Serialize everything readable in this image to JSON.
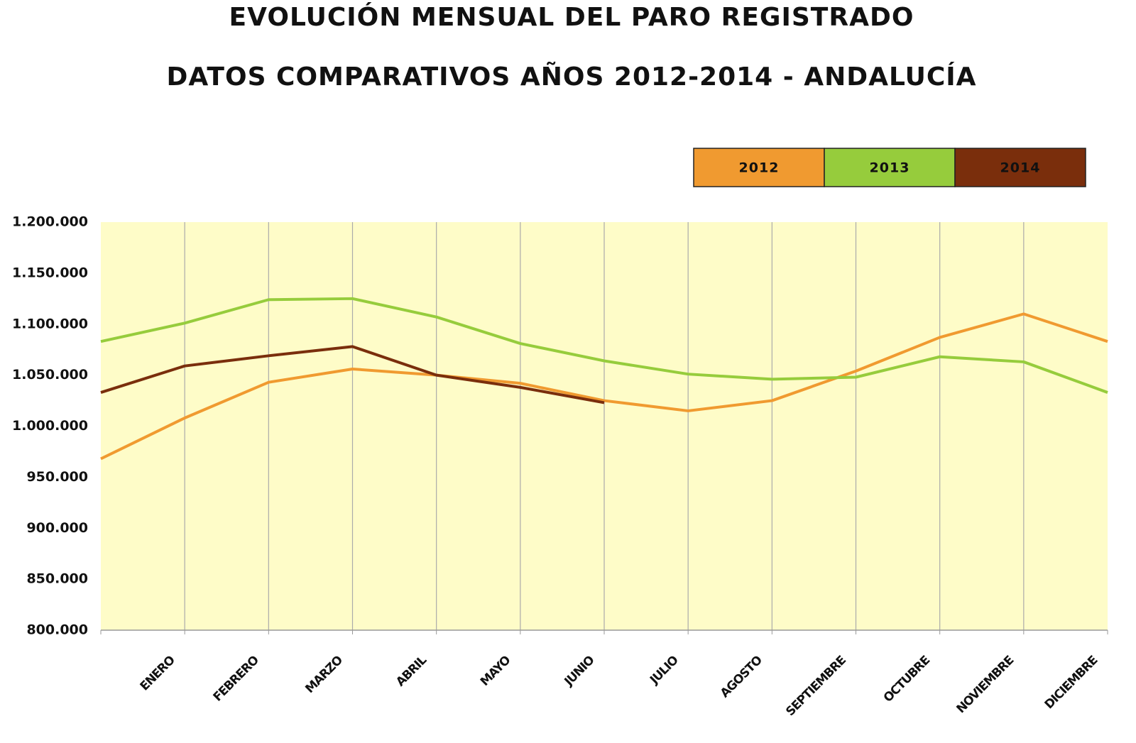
{
  "chart_data": {
    "type": "line",
    "title": "EVOLUCIÓN MENSUAL DEL PARO REGISTRADO",
    "subtitle": "DATOS COMPARATIVOS AÑOS 2012-2014 - ANDALUCÍA",
    "categories": [
      null,
      "ENERO",
      "FEBRERO",
      "MARZO",
      "ABRIL",
      "MAYO",
      "JUNIO",
      "JULIO",
      "AGOSTO",
      "SEPTIEMBRE",
      "OCTUBRE",
      "NOVIEMBRE",
      "DICIEMBRE"
    ],
    "series": [
      {
        "name": "2012",
        "color": "#f09a30",
        "values": [
          968000,
          1008000,
          1043000,
          1056000,
          1050000,
          1042000,
          1025000,
          1015000,
          1025000,
          1054000,
          1087000,
          1110000,
          1083000
        ]
      },
      {
        "name": "2013",
        "color": "#96cc3c",
        "values": [
          1083000,
          1101000,
          1124000,
          1125000,
          1107000,
          1081000,
          1064000,
          1051000,
          1046000,
          1048000,
          1068000,
          1063000,
          1033000
        ]
      },
      {
        "name": "2014",
        "color": "#7a2e0c",
        "values": [
          1033000,
          1059000,
          1069000,
          1078000,
          1050000,
          1038000,
          1023000,
          null,
          null,
          null,
          null,
          null,
          null
        ]
      }
    ],
    "ylim": [
      800000,
      1200000
    ],
    "yticks": [
      {
        "value": 800000,
        "label": "800.000"
      },
      {
        "value": 850000,
        "label": "850.000"
      },
      {
        "value": 900000,
        "label": "900.000"
      },
      {
        "value": 950000,
        "label": "950.000"
      },
      {
        "value": 1000000,
        "label": "1.000.000"
      },
      {
        "value": 1050000,
        "label": "1.050.000"
      },
      {
        "value": 1100000,
        "label": "1.100.000"
      },
      {
        "value": 1150000,
        "label": "1.150.000"
      },
      {
        "value": 1200000,
        "label": "1.200.000"
      }
    ],
    "legend": "top-right",
    "grid": true
  }
}
